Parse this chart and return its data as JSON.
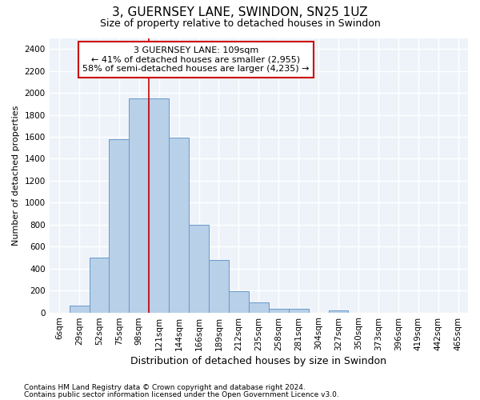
{
  "title": "3, GUERNSEY LANE, SWINDON, SN25 1UZ",
  "subtitle": "Size of property relative to detached houses in Swindon",
  "xlabel": "Distribution of detached houses by size in Swindon",
  "ylabel": "Number of detached properties",
  "bar_color": "#b8d0e8",
  "bar_edge_color": "#6699cc",
  "background_color": "#eef3fa",
  "grid_color": "#ffffff",
  "annotation_text": "3 GUERNSEY LANE: 109sqm\n← 41% of detached houses are smaller (2,955)\n58% of semi-detached houses are larger (4,235) →",
  "annotation_box_color": "#cc0000",
  "property_line_color": "#cc0000",
  "footnote1": "Contains HM Land Registry data © Crown copyright and database right 2024.",
  "footnote2": "Contains public sector information licensed under the Open Government Licence v3.0.",
  "bin_labels": [
    "6sqm",
    "29sqm",
    "52sqm",
    "75sqm",
    "98sqm",
    "121sqm",
    "144sqm",
    "166sqm",
    "189sqm",
    "212sqm",
    "235sqm",
    "258sqm",
    "281sqm",
    "304sqm",
    "327sqm",
    "350sqm",
    "373sqm",
    "396sqm",
    "419sqm",
    "442sqm",
    "465sqm"
  ],
  "bin_values": [
    0,
    60,
    500,
    1580,
    1950,
    1950,
    1590,
    800,
    480,
    195,
    90,
    35,
    30,
    0,
    22,
    0,
    0,
    0,
    0,
    0,
    0
  ],
  "ylim": [
    0,
    2500
  ],
  "yticks": [
    0,
    200,
    400,
    600,
    800,
    1000,
    1200,
    1400,
    1600,
    1800,
    2000,
    2200,
    2400
  ],
  "property_size_bin_idx": 4.5,
  "title_fontsize": 11,
  "subtitle_fontsize": 9,
  "xlabel_fontsize": 9,
  "ylabel_fontsize": 8,
  "tick_fontsize": 7.5,
  "annotation_fontsize": 8,
  "footnote_fontsize": 6.5
}
